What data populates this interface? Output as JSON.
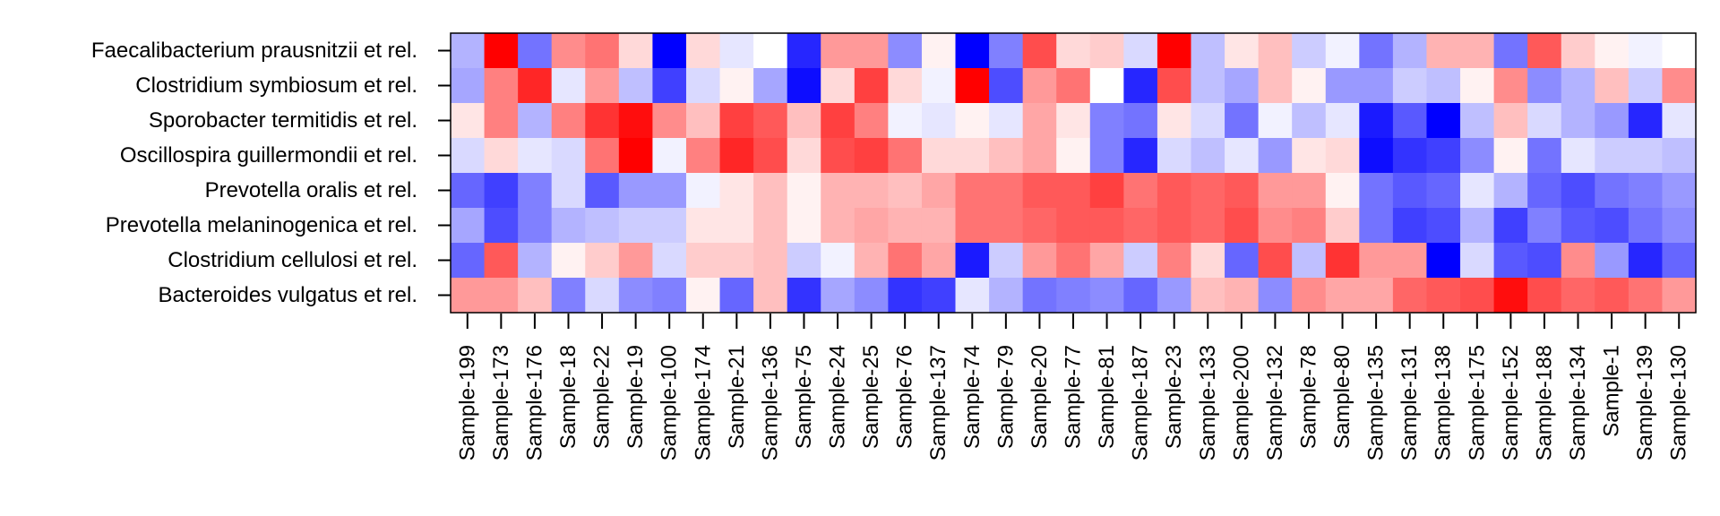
{
  "chart_data": {
    "type": "heatmap",
    "title": "",
    "xlabel": "",
    "ylabel": "",
    "rows": [
      "Faecalibacterium prausnitzii et rel.",
      "Clostridium symbiosum et rel.",
      "Sporobacter termitidis et rel.",
      "Oscillospira guillermondii et rel.",
      "Prevotella oralis et rel.",
      "Prevotella melaninogenica et rel.",
      "Clostridium cellulosi et rel.",
      "Bacteroides vulgatus et rel."
    ],
    "columns": [
      "Sample-199",
      "Sample-173",
      "Sample-176",
      "Sample-18",
      "Sample-22",
      "Sample-19",
      "Sample-100",
      "Sample-174",
      "Sample-21",
      "Sample-136",
      "Sample-75",
      "Sample-24",
      "Sample-25",
      "Sample-76",
      "Sample-137",
      "Sample-74",
      "Sample-79",
      "Sample-20",
      "Sample-77",
      "Sample-81",
      "Sample-187",
      "Sample-23",
      "Sample-133",
      "Sample-200",
      "Sample-132",
      "Sample-78",
      "Sample-80",
      "Sample-135",
      "Sample-131",
      "Sample-138",
      "Sample-175",
      "Sample-152",
      "Sample-188",
      "Sample-134",
      "Sample-1",
      "Sample-139",
      "Sample-130"
    ],
    "value_range": [
      -1,
      1
    ],
    "colorscale": {
      "low": "#0000ff",
      "mid": "#ffffff",
      "high": "#ff0000"
    },
    "values": [
      [
        -0.3,
        1.0,
        -0.55,
        0.45,
        0.55,
        0.15,
        -1.0,
        0.15,
        -0.1,
        0.0,
        -0.85,
        0.4,
        0.4,
        -0.45,
        0.05,
        -1.0,
        -0.5,
        0.7,
        0.15,
        0.2,
        -0.15,
        1.0,
        -0.25,
        0.1,
        0.25,
        -0.2,
        -0.05,
        -0.55,
        -0.3,
        0.3,
        0.3,
        -0.55,
        0.65,
        0.2,
        0.05,
        -0.05,
        0.0
      ],
      [
        -0.35,
        0.5,
        0.85,
        -0.1,
        0.4,
        -0.25,
        -0.75,
        -0.15,
        0.05,
        -0.35,
        -0.95,
        0.15,
        0.75,
        0.15,
        -0.05,
        1.0,
        -0.7,
        0.4,
        0.55,
        0.0,
        -0.85,
        0.7,
        -0.25,
        -0.35,
        0.25,
        0.05,
        -0.4,
        -0.4,
        -0.2,
        -0.25,
        0.05,
        0.45,
        -0.45,
        -0.3,
        0.25,
        -0.2,
        0.45
      ],
      [
        0.1,
        0.5,
        -0.3,
        0.5,
        0.8,
        0.95,
        0.45,
        0.25,
        0.75,
        0.65,
        0.25,
        0.75,
        0.5,
        -0.05,
        -0.1,
        0.05,
        -0.1,
        0.35,
        0.1,
        -0.5,
        -0.55,
        0.1,
        -0.15,
        -0.55,
        -0.05,
        -0.25,
        -0.1,
        -0.9,
        -0.65,
        -1.0,
        -0.25,
        0.25,
        -0.15,
        -0.3,
        -0.4,
        -0.85,
        -0.1
      ],
      [
        -0.15,
        0.15,
        -0.1,
        -0.15,
        0.55,
        1.0,
        -0.05,
        0.5,
        0.85,
        0.7,
        0.15,
        0.7,
        0.75,
        0.55,
        0.15,
        0.15,
        0.25,
        0.35,
        0.05,
        -0.5,
        -0.85,
        -0.15,
        -0.25,
        -0.1,
        -0.4,
        0.1,
        0.15,
        -0.95,
        -0.8,
        -0.75,
        -0.45,
        0.05,
        -0.55,
        -0.1,
        -0.2,
        -0.2,
        -0.25
      ],
      [
        -0.6,
        -0.75,
        -0.5,
        -0.15,
        -0.65,
        -0.4,
        -0.4,
        -0.05,
        0.1,
        0.25,
        0.05,
        0.3,
        0.3,
        0.25,
        0.35,
        0.55,
        0.55,
        0.65,
        0.65,
        0.75,
        0.55,
        0.65,
        0.6,
        0.65,
        0.4,
        0.4,
        0.05,
        -0.55,
        -0.65,
        -0.6,
        -0.1,
        -0.3,
        -0.6,
        -0.7,
        -0.55,
        -0.5,
        -0.4
      ],
      [
        -0.35,
        -0.7,
        -0.5,
        -0.3,
        -0.25,
        -0.2,
        -0.2,
        0.1,
        0.1,
        0.25,
        0.05,
        0.3,
        0.35,
        0.3,
        0.3,
        0.55,
        0.55,
        0.6,
        0.65,
        0.65,
        0.6,
        0.65,
        0.6,
        0.7,
        0.45,
        0.5,
        0.2,
        -0.55,
        -0.75,
        -0.7,
        -0.3,
        -0.75,
        -0.5,
        -0.65,
        -0.7,
        -0.55,
        -0.45
      ],
      [
        -0.6,
        0.65,
        -0.3,
        0.05,
        0.2,
        0.4,
        -0.15,
        0.2,
        0.2,
        0.25,
        -0.2,
        -0.05,
        0.3,
        0.55,
        0.35,
        -0.9,
        -0.2,
        0.4,
        0.55,
        0.35,
        -0.2,
        0.5,
        0.15,
        -0.6,
        0.7,
        -0.25,
        0.8,
        0.4,
        0.4,
        -1.0,
        -0.15,
        -0.65,
        -0.7,
        0.45,
        -0.4,
        -0.85,
        -0.6
      ],
      [
        0.4,
        0.4,
        0.25,
        -0.5,
        -0.15,
        -0.45,
        -0.5,
        0.05,
        -0.6,
        0.25,
        -0.8,
        -0.35,
        -0.45,
        -0.8,
        -0.75,
        -0.1,
        -0.3,
        -0.55,
        -0.5,
        -0.45,
        -0.6,
        -0.4,
        0.25,
        0.3,
        -0.45,
        0.45,
        0.35,
        0.35,
        0.6,
        0.65,
        0.7,
        0.95,
        0.7,
        0.6,
        0.65,
        0.55,
        0.4
      ]
    ]
  }
}
